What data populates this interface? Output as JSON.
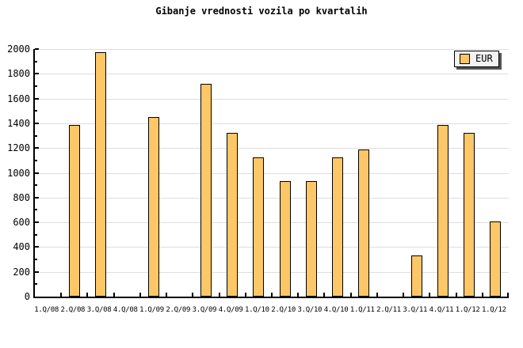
{
  "chart_data": {
    "type": "bar",
    "title": "Gibanje vrednosti vozila po kvartalih",
    "xlabel": "",
    "ylabel": "",
    "categories": [
      "1.Q/08",
      "2.Q/08",
      "3.Q/08",
      "4.Q/08",
      "1.Q/09",
      "2.Q/09",
      "3.Q/09",
      "4.Q/09",
      "1.Q/10",
      "2.Q/10",
      "3.Q/10",
      "4.Q/10",
      "1.Q/11",
      "2.Q/11",
      "3.Q/11",
      "4.Q/11",
      "1.Q/12",
      "1.Q/12"
    ],
    "series": [
      {
        "name": "EUR",
        "values": [
          null,
          1385,
          1975,
          null,
          1450,
          null,
          1720,
          1320,
          1125,
          930,
          930,
          1125,
          1190,
          null,
          335,
          1385,
          1320,
          610
        ]
      }
    ],
    "ylim": [
      0,
      2000
    ],
    "ytick_major_step": 200,
    "ytick_minor_step": 100,
    "grid": "horizontal-major",
    "legend": {
      "label": "EUR",
      "position": "top-right"
    },
    "colors": {
      "bar_fill": "#FDC767",
      "bar_border": "#000000",
      "grid": "#DEDEDE",
      "axis": "#000000",
      "text": "#000000",
      "background": "#FFFFFF",
      "legend_bg": "#F2F2F2",
      "legend_border": "#000000",
      "legend_shadow": "#555555"
    }
  }
}
